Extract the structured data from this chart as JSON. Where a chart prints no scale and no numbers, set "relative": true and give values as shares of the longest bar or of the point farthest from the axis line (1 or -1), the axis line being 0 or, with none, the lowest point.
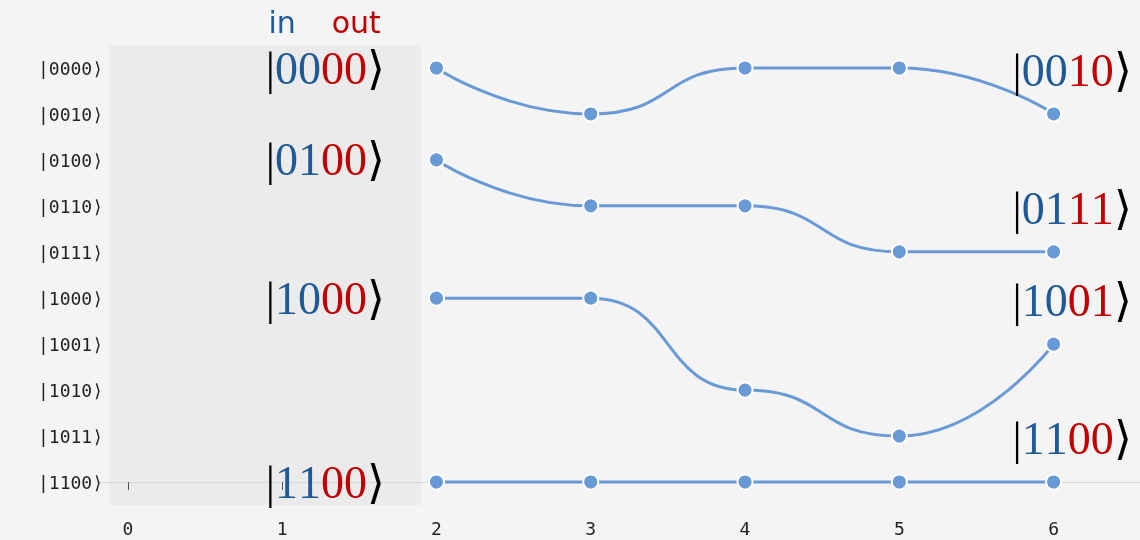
{
  "chart_data": {
    "type": "line",
    "relative": true,
    "x": [
      2,
      3,
      4,
      5,
      6
    ],
    "y_categories": [
      "|0000⟩",
      "|0010⟩",
      "|0100⟩",
      "|0110⟩",
      "|0111⟩",
      "|1000⟩",
      "|1001⟩",
      "|1010⟩",
      "|1011⟩",
      "|1100⟩"
    ],
    "series": [
      {
        "color": "#6a9ad6",
        "values": [
          1,
          0.889,
          1,
          1,
          0.889
        ]
      },
      {
        "color": "#6a9ad6",
        "values": [
          0.778,
          0.667,
          0.667,
          0.556,
          0.556
        ]
      },
      {
        "color": "#6a9ad6",
        "values": [
          0.444,
          0.444,
          0.222,
          0.111,
          0.333
        ]
      },
      {
        "color": "#6a9ad6",
        "values": [
          0,
          0,
          0,
          0,
          0
        ]
      }
    ],
    "xlim": [
      -0.2,
      6.56
    ],
    "xticks": [
      0,
      1,
      2,
      3,
      4,
      5,
      6
    ],
    "bands": [
      {
        "axis": "x",
        "from": -0.12,
        "to": 1.9,
        "color": "#ebebeb"
      }
    ],
    "annotations": [
      "in",
      "out",
      "|0000⟩",
      "|0100⟩",
      "|1000⟩",
      "|1100⟩",
      "|0010⟩",
      "|0111⟩",
      "|1001⟩",
      "|1100⟩"
    ],
    "grid": false,
    "marker": "circle",
    "line_style": "solid"
  }
}
